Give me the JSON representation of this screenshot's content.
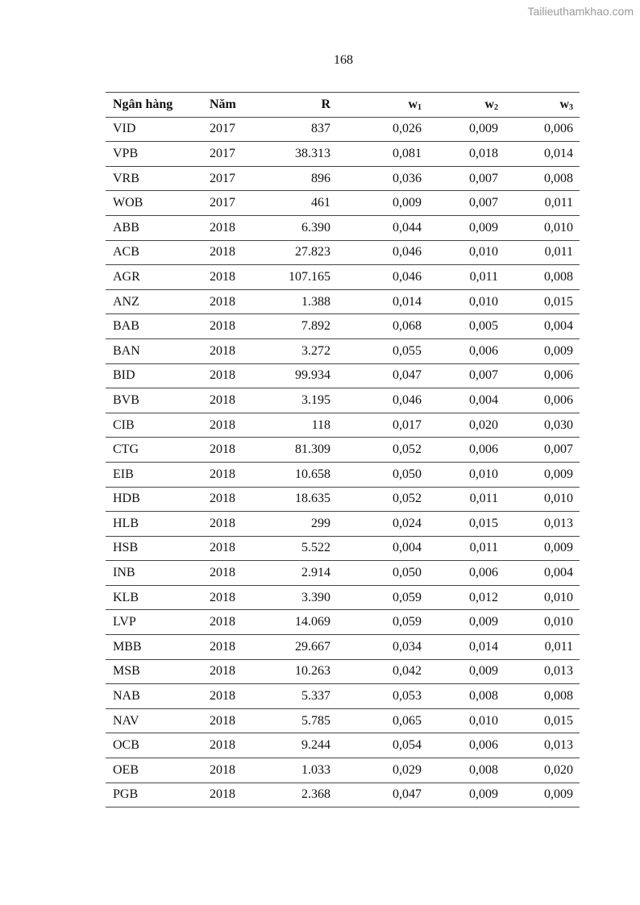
{
  "watermark": "Tailieuthamkhao.com",
  "page_number": "168",
  "table": {
    "headers": [
      "Ngân hàng",
      "Năm",
      "R",
      "w",
      "w",
      "w"
    ],
    "header_subscripts": [
      "",
      "",
      "",
      "1",
      "2",
      "3"
    ],
    "rows": [
      [
        "VID",
        "2017",
        "837",
        "0,026",
        "0,009",
        "0,006"
      ],
      [
        "VPB",
        "2017",
        "38.313",
        "0,081",
        "0,018",
        "0,014"
      ],
      [
        "VRB",
        "2017",
        "896",
        "0,036",
        "0,007",
        "0,008"
      ],
      [
        "WOB",
        "2017",
        "461",
        "0,009",
        "0,007",
        "0,011"
      ],
      [
        "ABB",
        "2018",
        "6.390",
        "0,044",
        "0,009",
        "0,010"
      ],
      [
        "ACB",
        "2018",
        "27.823",
        "0,046",
        "0,010",
        "0,011"
      ],
      [
        "AGR",
        "2018",
        "107.165",
        "0,046",
        "0,011",
        "0,008"
      ],
      [
        "ANZ",
        "2018",
        "1.388",
        "0,014",
        "0,010",
        "0,015"
      ],
      [
        "BAB",
        "2018",
        "7.892",
        "0,068",
        "0,005",
        "0,004"
      ],
      [
        "BAN",
        "2018",
        "3.272",
        "0,055",
        "0,006",
        "0,009"
      ],
      [
        "BID",
        "2018",
        "99.934",
        "0,047",
        "0,007",
        "0,006"
      ],
      [
        "BVB",
        "2018",
        "3.195",
        "0,046",
        "0,004",
        "0,006"
      ],
      [
        "CIB",
        "2018",
        "118",
        "0,017",
        "0,020",
        "0,030"
      ],
      [
        "CTG",
        "2018",
        "81.309",
        "0,052",
        "0,006",
        "0,007"
      ],
      [
        "EIB",
        "2018",
        "10.658",
        "0,050",
        "0,010",
        "0,009"
      ],
      [
        "HDB",
        "2018",
        "18.635",
        "0,052",
        "0,011",
        "0,010"
      ],
      [
        "HLB",
        "2018",
        "299",
        "0,024",
        "0,015",
        "0,013"
      ],
      [
        "HSB",
        "2018",
        "5.522",
        "0,004",
        "0,011",
        "0,009"
      ],
      [
        "INB",
        "2018",
        "2.914",
        "0,050",
        "0,006",
        "0,004"
      ],
      [
        "KLB",
        "2018",
        "3.390",
        "0,059",
        "0,012",
        "0,010"
      ],
      [
        "LVP",
        "2018",
        "14.069",
        "0,059",
        "0,009",
        "0,010"
      ],
      [
        "MBB",
        "2018",
        "29.667",
        "0,034",
        "0,014",
        "0,011"
      ],
      [
        "MSB",
        "2018",
        "10.263",
        "0,042",
        "0,009",
        "0,013"
      ],
      [
        "NAB",
        "2018",
        "5.337",
        "0,053",
        "0,008",
        "0,008"
      ],
      [
        "NAV",
        "2018",
        "5.785",
        "0,065",
        "0,010",
        "0,015"
      ],
      [
        "OCB",
        "2018",
        "9.244",
        "0,054",
        "0,006",
        "0,013"
      ],
      [
        "OEB",
        "2018",
        "1.033",
        "0,029",
        "0,008",
        "0,020"
      ],
      [
        "PGB",
        "2018",
        "2.368",
        "0,047",
        "0,009",
        "0,009"
      ]
    ]
  }
}
